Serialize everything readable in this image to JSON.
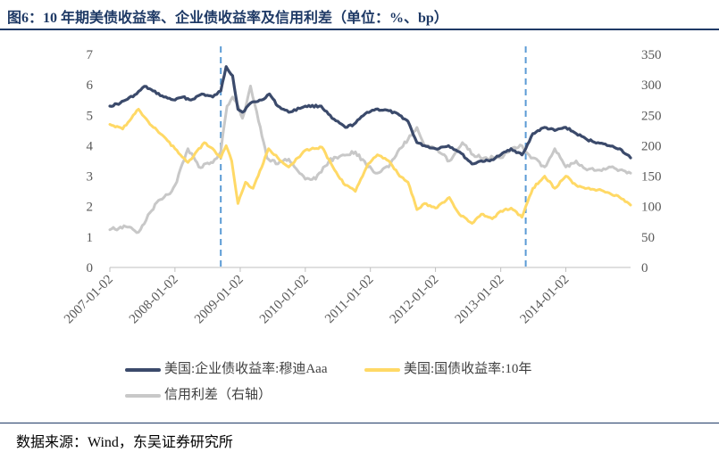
{
  "header": {
    "title": "图6：10 年期美债收益率、企业债收益率及信用利差（单位：%、bp）"
  },
  "footer": {
    "source": "数据来源：Wind，东吴证券研究所"
  },
  "colors": {
    "corporate": "#3b4a6b",
    "treasury": "#ffd966",
    "spread": "#c8c8c8",
    "marker": "#5b9bd5",
    "axis": "#bfbfbf",
    "title": "#1f3a66"
  },
  "chart_data": {
    "type": "line",
    "title": "",
    "x_axis": {
      "type": "date",
      "range": [
        "2007-01-02",
        "2014-12-31"
      ],
      "tick_labels": [
        "2007-01-02",
        "2008-01-02",
        "2009-01-02",
        "2010-01-02",
        "2011-01-02",
        "2012-01-02",
        "2013-01-02",
        "2014-01-02"
      ]
    },
    "y_left": {
      "range": [
        0,
        7
      ],
      "ticks": [
        "0",
        "1",
        "2",
        "3",
        "4",
        "5",
        "6",
        "7"
      ]
    },
    "y_right": {
      "range": [
        0,
        350
      ],
      "ticks": [
        "0",
        "50",
        "100",
        "150",
        "200",
        "250",
        "300",
        "350"
      ]
    },
    "reference_lines": [
      "2008-09-15",
      "2013-05-22"
    ],
    "legend_position": "bottom",
    "series": [
      {
        "name": "美国:企业债收益率:穆迪Aaa",
        "axis": "left",
        "color": "#3b4a6b",
        "points": [
          [
            "2007-01-02",
            5.3
          ],
          [
            "2007-03-01",
            5.4
          ],
          [
            "2007-06-01",
            5.7
          ],
          [
            "2007-07-15",
            5.95
          ],
          [
            "2007-09-01",
            5.8
          ],
          [
            "2007-11-01",
            5.6
          ],
          [
            "2008-01-02",
            5.5
          ],
          [
            "2008-02-15",
            5.6
          ],
          [
            "2008-04-01",
            5.5
          ],
          [
            "2008-06-01",
            5.7
          ],
          [
            "2008-08-01",
            5.6
          ],
          [
            "2008-09-15",
            5.8
          ],
          [
            "2008-10-15",
            6.6
          ],
          [
            "2008-11-20",
            6.3
          ],
          [
            "2008-12-20",
            5.2
          ],
          [
            "2009-01-15",
            5.1
          ],
          [
            "2009-03-01",
            5.4
          ],
          [
            "2009-05-01",
            5.5
          ],
          [
            "2009-06-15",
            5.7
          ],
          [
            "2009-08-01",
            5.3
          ],
          [
            "2009-10-01",
            5.1
          ],
          [
            "2010-01-02",
            5.3
          ],
          [
            "2010-04-01",
            5.3
          ],
          [
            "2010-06-01",
            4.9
          ],
          [
            "2010-08-15",
            4.6
          ],
          [
            "2010-10-01",
            4.7
          ],
          [
            "2010-12-15",
            5.1
          ],
          [
            "2011-02-01",
            5.2
          ],
          [
            "2011-04-15",
            5.15
          ],
          [
            "2011-06-15",
            5.0
          ],
          [
            "2011-08-01",
            4.8
          ],
          [
            "2011-09-20",
            4.1
          ],
          [
            "2011-11-01",
            4.0
          ],
          [
            "2012-01-02",
            3.9
          ],
          [
            "2012-03-15",
            4.0
          ],
          [
            "2012-05-15",
            3.8
          ],
          [
            "2012-07-25",
            3.4
          ],
          [
            "2012-09-15",
            3.5
          ],
          [
            "2012-11-01",
            3.5
          ],
          [
            "2013-01-02",
            3.7
          ],
          [
            "2013-03-01",
            3.9
          ],
          [
            "2013-05-01",
            3.7
          ],
          [
            "2013-05-22",
            3.9
          ],
          [
            "2013-07-01",
            4.4
          ],
          [
            "2013-09-05",
            4.6
          ],
          [
            "2013-11-01",
            4.5
          ],
          [
            "2014-01-02",
            4.6
          ],
          [
            "2014-03-01",
            4.4
          ],
          [
            "2014-05-01",
            4.2
          ],
          [
            "2014-07-01",
            4.1
          ],
          [
            "2014-09-01",
            4.0
          ],
          [
            "2014-11-01",
            3.9
          ],
          [
            "2014-12-31",
            3.6
          ]
        ]
      },
      {
        "name": "美国:国债收益率:10年",
        "axis": "left",
        "color": "#ffd966",
        "points": [
          [
            "2007-01-02",
            4.7
          ],
          [
            "2007-03-15",
            4.55
          ],
          [
            "2007-06-12",
            5.2
          ],
          [
            "2007-08-15",
            4.7
          ],
          [
            "2007-11-01",
            4.3
          ],
          [
            "2008-01-02",
            3.9
          ],
          [
            "2008-03-15",
            3.45
          ],
          [
            "2008-06-15",
            4.1
          ],
          [
            "2008-08-01",
            3.9
          ],
          [
            "2008-09-15",
            3.6
          ],
          [
            "2008-10-15",
            4.0
          ],
          [
            "2008-11-15",
            3.5
          ],
          [
            "2008-12-20",
            2.1
          ],
          [
            "2009-02-01",
            2.8
          ],
          [
            "2009-03-15",
            2.6
          ],
          [
            "2009-06-10",
            3.9
          ],
          [
            "2009-08-01",
            3.6
          ],
          [
            "2009-10-01",
            3.3
          ],
          [
            "2010-01-02",
            3.85
          ],
          [
            "2010-04-05",
            3.95
          ],
          [
            "2010-06-15",
            3.2
          ],
          [
            "2010-08-15",
            2.7
          ],
          [
            "2010-10-10",
            2.5
          ],
          [
            "2010-12-20",
            3.4
          ],
          [
            "2011-02-10",
            3.7
          ],
          [
            "2011-04-15",
            3.5
          ],
          [
            "2011-06-15",
            3.0
          ],
          [
            "2011-08-01",
            2.8
          ],
          [
            "2011-09-20",
            1.9
          ],
          [
            "2011-11-01",
            2.1
          ],
          [
            "2012-01-02",
            1.95
          ],
          [
            "2012-03-20",
            2.3
          ],
          [
            "2012-05-15",
            1.75
          ],
          [
            "2012-07-25",
            1.45
          ],
          [
            "2012-09-15",
            1.75
          ],
          [
            "2012-11-15",
            1.6
          ],
          [
            "2013-01-02",
            1.85
          ],
          [
            "2013-03-01",
            1.95
          ],
          [
            "2013-05-01",
            1.65
          ],
          [
            "2013-05-22",
            2.0
          ],
          [
            "2013-07-01",
            2.6
          ],
          [
            "2013-09-05",
            3.0
          ],
          [
            "2013-11-01",
            2.6
          ],
          [
            "2014-01-02",
            3.0
          ],
          [
            "2014-03-01",
            2.7
          ],
          [
            "2014-05-01",
            2.6
          ],
          [
            "2014-07-01",
            2.55
          ],
          [
            "2014-09-01",
            2.45
          ],
          [
            "2014-11-01",
            2.3
          ],
          [
            "2014-12-31",
            2.05
          ]
        ]
      },
      {
        "name": "信用利差（右轴）",
        "axis": "right",
        "color": "#c8c8c8",
        "points": [
          [
            "2007-01-02",
            62
          ],
          [
            "2007-04-01",
            67
          ],
          [
            "2007-06-12",
            58
          ],
          [
            "2007-08-15",
            90
          ],
          [
            "2007-10-01",
            110
          ],
          [
            "2007-12-15",
            125
          ],
          [
            "2008-01-02",
            135
          ],
          [
            "2008-03-15",
            195
          ],
          [
            "2008-05-15",
            165
          ],
          [
            "2008-08-01",
            172
          ],
          [
            "2008-09-15",
            190
          ],
          [
            "2008-10-20",
            265
          ],
          [
            "2008-11-20",
            280
          ],
          [
            "2008-12-20",
            265
          ],
          [
            "2009-01-15",
            245
          ],
          [
            "2009-03-01",
            298
          ],
          [
            "2009-04-15",
            240
          ],
          [
            "2009-06-01",
            180
          ],
          [
            "2009-08-01",
            170
          ],
          [
            "2009-10-01",
            178
          ],
          [
            "2010-01-02",
            145
          ],
          [
            "2010-03-01",
            145
          ],
          [
            "2010-05-15",
            175
          ],
          [
            "2010-08-01",
            185
          ],
          [
            "2010-10-10",
            190
          ],
          [
            "2010-12-20",
            165
          ],
          [
            "2011-02-10",
            155
          ],
          [
            "2011-04-15",
            165
          ],
          [
            "2011-06-15",
            195
          ],
          [
            "2011-08-01",
            210
          ],
          [
            "2011-09-20",
            230
          ],
          [
            "2011-11-01",
            200
          ],
          [
            "2012-01-02",
            195
          ],
          [
            "2012-03-20",
            175
          ],
          [
            "2012-06-01",
            205
          ],
          [
            "2012-08-01",
            185
          ],
          [
            "2012-10-01",
            180
          ],
          [
            "2012-12-01",
            180
          ],
          [
            "2013-01-02",
            180
          ],
          [
            "2013-03-01",
            195
          ],
          [
            "2013-05-01",
            200
          ],
          [
            "2013-05-22",
            190
          ],
          [
            "2013-07-01",
            180
          ],
          [
            "2013-09-05",
            165
          ],
          [
            "2013-11-01",
            195
          ],
          [
            "2014-01-02",
            165
          ],
          [
            "2014-03-01",
            175
          ],
          [
            "2014-05-01",
            160
          ],
          [
            "2014-07-01",
            160
          ],
          [
            "2014-09-01",
            165
          ],
          [
            "2014-11-01",
            160
          ],
          [
            "2014-12-31",
            155
          ]
        ]
      }
    ]
  }
}
